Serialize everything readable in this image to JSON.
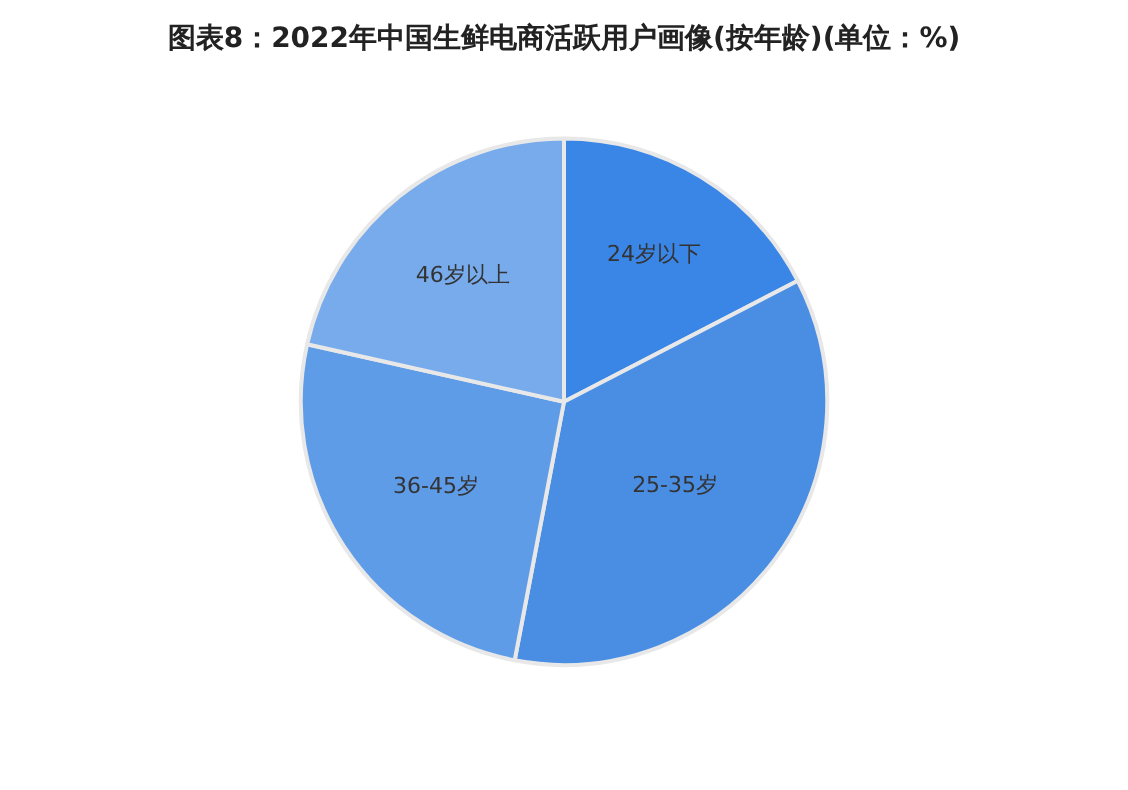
{
  "chart_data": {
    "type": "pie",
    "title": "图表8：2022年中国生鲜电商活跃用户画像(按年龄)(单位：%)",
    "categories": [
      "24岁以下",
      "25-35岁",
      "36-45岁",
      "46岁以上"
    ],
    "values": [
      17.4,
      35.6,
      25.5,
      21.5
    ],
    "colors": [
      "#3a86e6",
      "#4a8ee4",
      "#5f9ce8",
      "#77abec"
    ],
    "legend": false
  }
}
